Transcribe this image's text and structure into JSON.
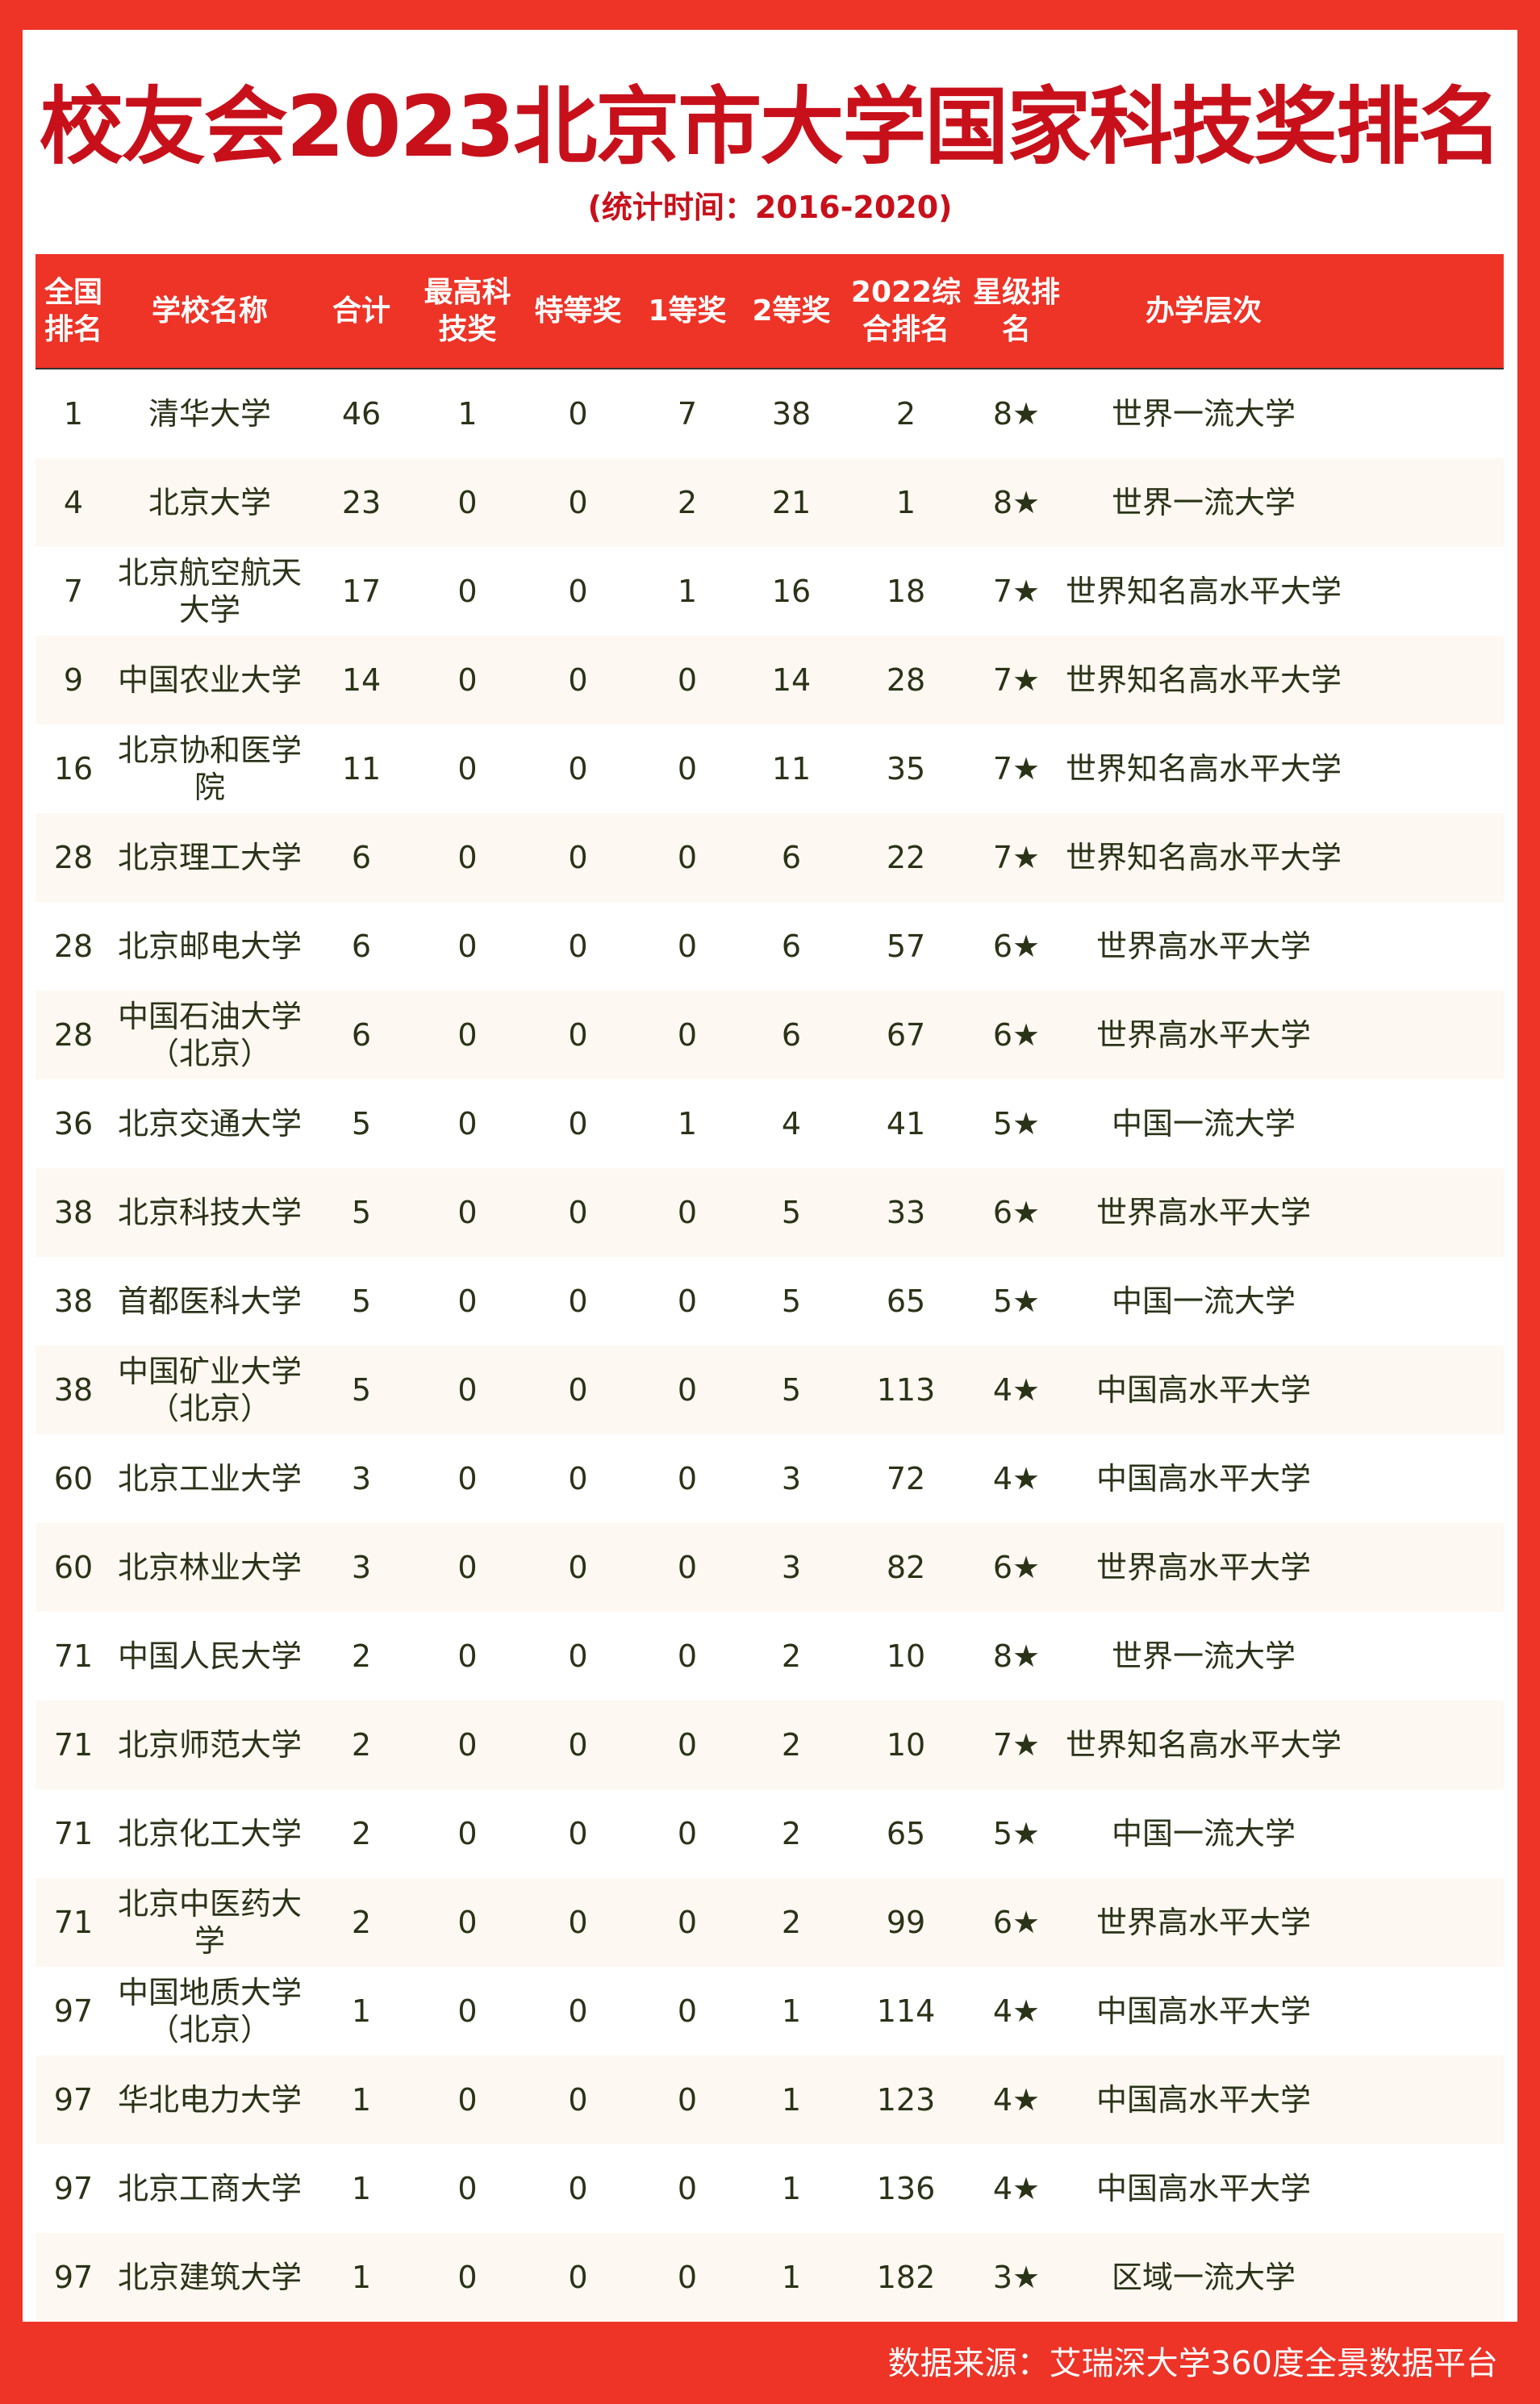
{
  "title": "校友会2023北京市大学国家科技奖排名",
  "subtitle": "(统计时间：2016-2020)",
  "colors": {
    "accent": "#ee3327",
    "title": "#c8101b",
    "text": "#2a3318",
    "alt_row": "#fdf8f1"
  },
  "headers": [
    "全国排名",
    "学校名称",
    "合计",
    "最高科技奖",
    "特等奖",
    "1等奖",
    "2等奖",
    "2022综合排名",
    "星级排名",
    "办学层次"
  ],
  "rows": [
    [
      "1",
      "清华大学",
      "46",
      "1",
      "0",
      "7",
      "38",
      "2",
      "8★",
      "世界一流大学"
    ],
    [
      "4",
      "北京大学",
      "23",
      "0",
      "0",
      "2",
      "21",
      "1",
      "8★",
      "世界一流大学"
    ],
    [
      "7",
      "北京航空航天大学",
      "17",
      "0",
      "0",
      "1",
      "16",
      "18",
      "7★",
      "世界知名高水平大学"
    ],
    [
      "9",
      "中国农业大学",
      "14",
      "0",
      "0",
      "0",
      "14",
      "28",
      "7★",
      "世界知名高水平大学"
    ],
    [
      "16",
      "北京协和医学院",
      "11",
      "0",
      "0",
      "0",
      "11",
      "35",
      "7★",
      "世界知名高水平大学"
    ],
    [
      "28",
      "北京理工大学",
      "6",
      "0",
      "0",
      "0",
      "6",
      "22",
      "7★",
      "世界知名高水平大学"
    ],
    [
      "28",
      "北京邮电大学",
      "6",
      "0",
      "0",
      "0",
      "6",
      "57",
      "6★",
      "世界高水平大学"
    ],
    [
      "28",
      "中国石油大学（北京）",
      "6",
      "0",
      "0",
      "0",
      "6",
      "67",
      "6★",
      "世界高水平大学"
    ],
    [
      "36",
      "北京交通大学",
      "5",
      "0",
      "0",
      "1",
      "4",
      "41",
      "5★",
      "中国一流大学"
    ],
    [
      "38",
      "北京科技大学",
      "5",
      "0",
      "0",
      "0",
      "5",
      "33",
      "6★",
      "世界高水平大学"
    ],
    [
      "38",
      "首都医科大学",
      "5",
      "0",
      "0",
      "0",
      "5",
      "65",
      "5★",
      "中国一流大学"
    ],
    [
      "38",
      "中国矿业大学（北京）",
      "5",
      "0",
      "0",
      "0",
      "5",
      "113",
      "4★",
      "中国高水平大学"
    ],
    [
      "60",
      "北京工业大学",
      "3",
      "0",
      "0",
      "0",
      "3",
      "72",
      "4★",
      "中国高水平大学"
    ],
    [
      "60",
      "北京林业大学",
      "3",
      "0",
      "0",
      "0",
      "3",
      "82",
      "6★",
      "世界高水平大学"
    ],
    [
      "71",
      "中国人民大学",
      "2",
      "0",
      "0",
      "0",
      "2",
      "10",
      "8★",
      "世界一流大学"
    ],
    [
      "71",
      "北京师范大学",
      "2",
      "0",
      "0",
      "0",
      "2",
      "10",
      "7★",
      "世界知名高水平大学"
    ],
    [
      "71",
      "北京化工大学",
      "2",
      "0",
      "0",
      "0",
      "2",
      "65",
      "5★",
      "中国一流大学"
    ],
    [
      "71",
      "北京中医药大学",
      "2",
      "0",
      "0",
      "0",
      "2",
      "99",
      "6★",
      "世界高水平大学"
    ],
    [
      "97",
      "中国地质大学（北京）",
      "1",
      "0",
      "0",
      "0",
      "1",
      "114",
      "4★",
      "中国高水平大学"
    ],
    [
      "97",
      "华北电力大学",
      "1",
      "0",
      "0",
      "0",
      "1",
      "123",
      "4★",
      "中国高水平大学"
    ],
    [
      "97",
      "北京工商大学",
      "1",
      "0",
      "0",
      "0",
      "1",
      "136",
      "4★",
      "中国高水平大学"
    ],
    [
      "97",
      "北京建筑大学",
      "1",
      "0",
      "0",
      "0",
      "1",
      "182",
      "3★",
      "区域一流大学"
    ]
  ],
  "footer": "数据来源：艾瑞深大学360度全景数据平台"
}
